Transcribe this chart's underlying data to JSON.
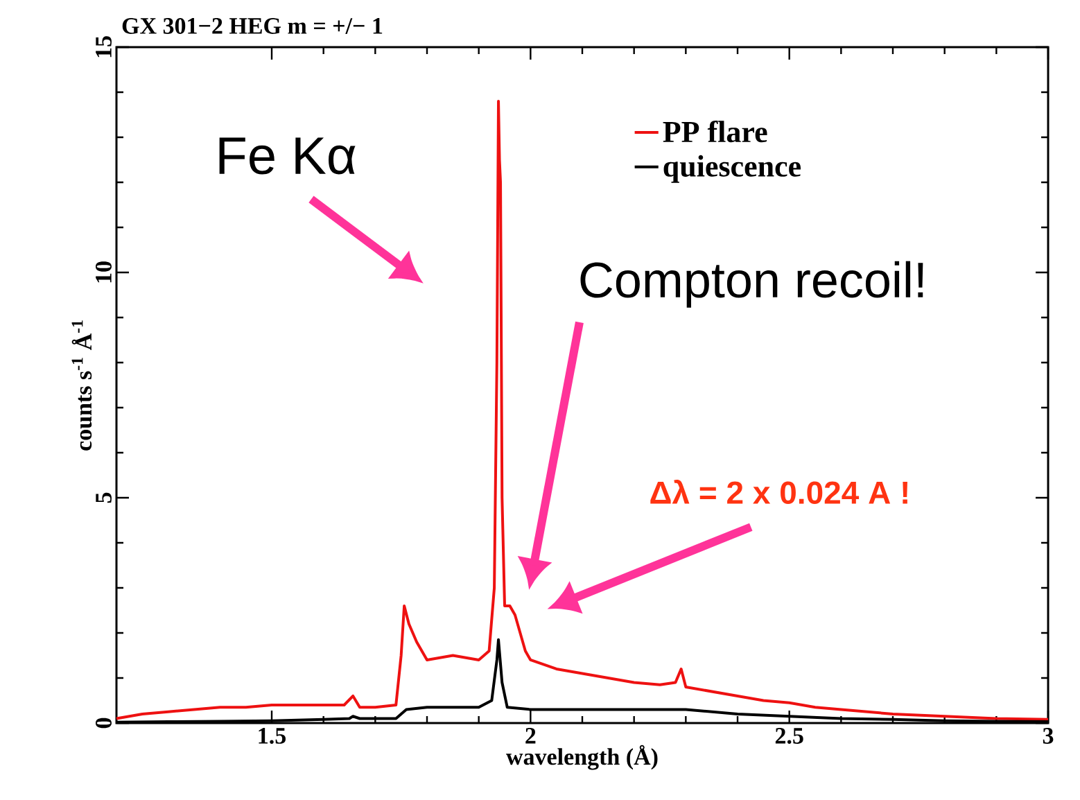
{
  "chart_data": {
    "type": "line",
    "title": "GX 301−2 HEG m = +/− 1",
    "xlabel": "wavelength (Å)",
    "ylabel": "counts s$^{-1}$ Å$^{-1}$",
    "xlim": [
      1.2,
      3
    ],
    "ylim": [
      0,
      15
    ],
    "xticks": [
      1.5,
      2,
      2.5,
      3
    ],
    "yticks": [
      0,
      5,
      10,
      15
    ],
    "legend": "top right",
    "grid": false,
    "series": [
      {
        "name": "PP flare",
        "color": "#ee1111",
        "x": [
          1.2,
          1.25,
          1.3,
          1.35,
          1.4,
          1.45,
          1.5,
          1.55,
          1.6,
          1.64,
          1.657,
          1.67,
          1.7,
          1.74,
          1.75,
          1.756,
          1.765,
          1.78,
          1.8,
          1.85,
          1.9,
          1.92,
          1.93,
          1.935,
          1.938,
          1.94,
          1.942,
          1.945,
          1.95,
          1.96,
          1.97,
          1.98,
          1.99,
          2.0,
          2.05,
          2.1,
          2.15,
          2.2,
          2.25,
          2.28,
          2.291,
          2.3,
          2.35,
          2.4,
          2.45,
          2.5,
          2.55,
          2.6,
          2.7,
          2.8,
          2.9,
          3.0
        ],
        "values": [
          0.1,
          0.2,
          0.25,
          0.3,
          0.35,
          0.35,
          0.4,
          0.4,
          0.4,
          0.4,
          0.6,
          0.35,
          0.35,
          0.4,
          1.5,
          2.6,
          2.2,
          1.8,
          1.4,
          1.5,
          1.4,
          1.6,
          3.0,
          8.0,
          13.8,
          12.5,
          12.0,
          5.0,
          2.6,
          2.6,
          2.4,
          2.0,
          1.6,
          1.4,
          1.2,
          1.1,
          1.0,
          0.9,
          0.85,
          0.9,
          1.2,
          0.8,
          0.7,
          0.6,
          0.5,
          0.45,
          0.35,
          0.3,
          0.2,
          0.15,
          0.1,
          0.08
        ]
      },
      {
        "name": "quiescence",
        "color": "#000000",
        "x": [
          1.2,
          1.3,
          1.4,
          1.5,
          1.6,
          1.65,
          1.657,
          1.67,
          1.74,
          1.76,
          1.8,
          1.85,
          1.9,
          1.925,
          1.935,
          1.938,
          1.945,
          1.955,
          2.0,
          2.1,
          2.2,
          2.3,
          2.4,
          2.5,
          2.6,
          2.7,
          2.8,
          2.9,
          3.0
        ],
        "values": [
          0.02,
          0.03,
          0.04,
          0.05,
          0.08,
          0.1,
          0.15,
          0.1,
          0.1,
          0.3,
          0.35,
          0.35,
          0.35,
          0.5,
          1.4,
          1.85,
          0.9,
          0.35,
          0.3,
          0.3,
          0.3,
          0.3,
          0.2,
          0.15,
          0.1,
          0.08,
          0.05,
          0.04,
          0.03
        ]
      }
    ],
    "annotations": [
      "Fe Kα",
      "Compton recoil!",
      "Δλ = 2 x 0.024 A !"
    ]
  }
}
